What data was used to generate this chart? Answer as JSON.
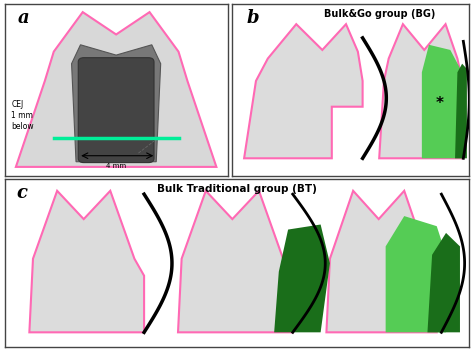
{
  "panel_a_label": "a",
  "panel_b_label": "b",
  "panel_c_label": "c",
  "panel_b_title": "Bulk&Go group (BG)",
  "panel_c_title": "Bulk Traditional group (BT)",
  "cej_text": "CEJ\n1 mm\nbelow",
  "dim_text": "4 mm",
  "star_text": "*",
  "tooth_outline_color": "#ff69b4",
  "tooth_fill_color": "#dcdcdc",
  "tooth_outer_fill": "#cccccc",
  "cej_line_color": "#00ee99",
  "green_light": "#55cc55",
  "green_dark": "#1a6e1a",
  "black_curve_color": "#111111",
  "cavity_outer": "#909090",
  "cavity_inner": "#505050"
}
